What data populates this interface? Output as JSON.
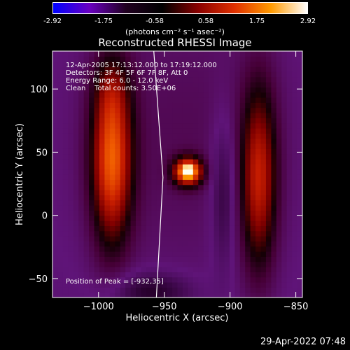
{
  "colorbar": {
    "ticks": [
      "-2.92",
      "-1.75",
      "-0.58",
      "0.58",
      "1.75",
      "2.92"
    ],
    "units": "(photons cm⁻² s⁻¹ asec⁻²)",
    "colors": [
      "#0000ff",
      "#6a00c0",
      "#200020",
      "#000000",
      "#8a0000",
      "#e03000",
      "#ff9a00",
      "#ffffff"
    ]
  },
  "chart_data": {
    "type": "heatmap",
    "title": "Reconstructed RHESSI Image",
    "xlabel": "Heliocentric X (arcsec)",
    "ylabel": "Heliocentric Y (arcsec)",
    "xlim": [
      -1035,
      -845
    ],
    "ylim": [
      -65,
      130
    ],
    "x_ticks": [
      -1000,
      -950,
      -900,
      -850
    ],
    "y_ticks": [
      -50,
      0,
      50,
      100
    ],
    "x_tick_labels": [
      "−1000",
      "−950",
      "−900",
      "−850"
    ],
    "y_tick_labels": [
      "−50",
      "0",
      "50",
      "100"
    ],
    "info_lines": [
      "12-Apr-2005 17:13:12.000 to 17:19:12.000",
      "Detectors: 3F 4F 5F 6F 7F 8F, Att 0",
      "Energy Range: 6.0 - 12.0 keV",
      "Clean    Total counts: 3.50E+06"
    ],
    "peak_label": "Position of Peak = [-932,35]",
    "peak": [
      -932,
      35
    ],
    "limb_line": [
      [
        -958,
        130
      ],
      [
        -951,
        30
      ],
      [
        -956,
        -65
      ]
    ]
  },
  "timestamp": "29-Apr-2022 07:48"
}
